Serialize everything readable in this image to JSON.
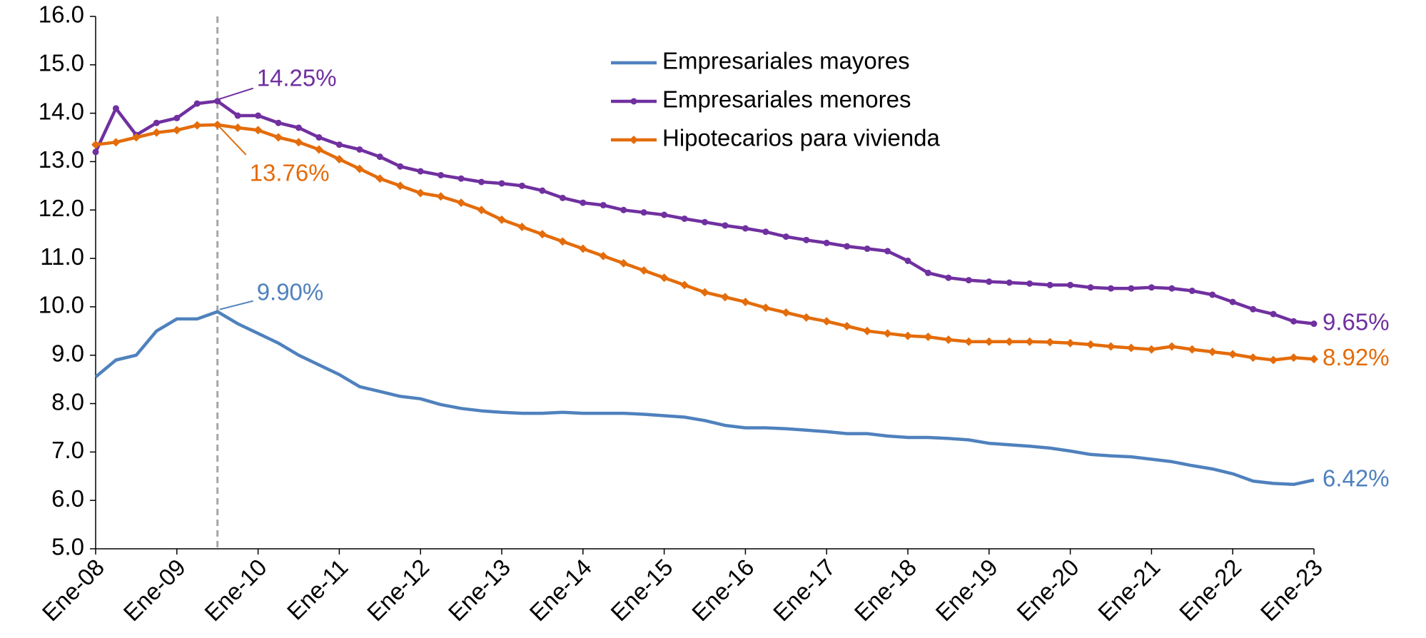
{
  "chart_data": {
    "type": "line",
    "categories": [
      "Ene-08",
      null,
      null,
      null,
      "Ene-09",
      null,
      null,
      null,
      "Ene-10",
      null,
      null,
      null,
      "Ene-11",
      null,
      null,
      null,
      "Ene-12",
      null,
      null,
      null,
      "Ene-13",
      null,
      null,
      null,
      "Ene-14",
      null,
      null,
      null,
      "Ene-15",
      null,
      null,
      null,
      "Ene-16",
      null,
      null,
      null,
      "Ene-17",
      null,
      null,
      null,
      "Ene-18",
      null,
      null,
      null,
      "Ene-19",
      null,
      null,
      null,
      "Ene-20",
      null,
      null,
      null,
      "Ene-21",
      null,
      null,
      null,
      "Ene-22",
      null,
      null,
      null,
      "Ene-23"
    ],
    "ylim": [
      5,
      16
    ],
    "yticks": [
      {
        "value": 5,
        "label": "5.0"
      },
      {
        "value": 6,
        "label": "6.0"
      },
      {
        "value": 7,
        "label": "7.0"
      },
      {
        "value": 8,
        "label": "8.0"
      },
      {
        "value": 9,
        "label": "9.0"
      },
      {
        "value": 10,
        "label": "10.0"
      },
      {
        "value": 11,
        "label": "11.0"
      },
      {
        "value": 12,
        "label": "12.0"
      },
      {
        "value": 13,
        "label": "13.0"
      },
      {
        "value": 14,
        "label": "14.0"
      },
      {
        "value": 15,
        "label": "15.0"
      },
      {
        "value": 16,
        "label": "16.0"
      }
    ],
    "legend": "top",
    "series": [
      {
        "name": "Empresariales mayores",
        "color": "#4f81bd",
        "marker": "none",
        "values": [
          8.55,
          8.9,
          9.0,
          9.5,
          9.75,
          9.75,
          9.9,
          9.65,
          9.45,
          9.25,
          9.0,
          8.8,
          8.6,
          8.35,
          8.25,
          8.15,
          8.1,
          7.98,
          7.9,
          7.85,
          7.82,
          7.8,
          7.8,
          7.82,
          7.8,
          7.8,
          7.8,
          7.78,
          7.75,
          7.72,
          7.65,
          7.55,
          7.5,
          7.5,
          7.48,
          7.45,
          7.42,
          7.38,
          7.38,
          7.33,
          7.3,
          7.3,
          7.28,
          7.25,
          7.18,
          7.15,
          7.12,
          7.08,
          7.02,
          6.95,
          6.92,
          6.9,
          6.85,
          6.8,
          6.72,
          6.65,
          6.55,
          6.4,
          6.35,
          6.33,
          6.42
        ],
        "value_labels": [
          null,
          null,
          null,
          null,
          null,
          null,
          "9.90%",
          null,
          null,
          null,
          null,
          null,
          null,
          null,
          null,
          null,
          null,
          null,
          null,
          null,
          null,
          null,
          null,
          null,
          null,
          null,
          null,
          null,
          null,
          null,
          null,
          null,
          null,
          null,
          null,
          null,
          null,
          null,
          null,
          null,
          null,
          null,
          null,
          null,
          null,
          null,
          null,
          null,
          null,
          null,
          null,
          null,
          null,
          null,
          null,
          null,
          null,
          null,
          null,
          null,
          "6.42%"
        ]
      },
      {
        "name": "Empresariales menores",
        "color": "#7030a0",
        "marker": "circle",
        "values": [
          13.2,
          14.1,
          13.55,
          13.8,
          13.9,
          14.2,
          14.25,
          13.95,
          13.95,
          13.8,
          13.7,
          13.5,
          13.35,
          13.25,
          13.1,
          12.9,
          12.8,
          12.72,
          12.65,
          12.58,
          12.55,
          12.5,
          12.4,
          12.25,
          12.15,
          12.1,
          12.0,
          11.95,
          11.9,
          11.82,
          11.75,
          11.68,
          11.62,
          11.55,
          11.45,
          11.38,
          11.32,
          11.25,
          11.2,
          11.15,
          10.95,
          10.7,
          10.6,
          10.55,
          10.52,
          10.5,
          10.48,
          10.45,
          10.45,
          10.4,
          10.38,
          10.38,
          10.4,
          10.38,
          10.33,
          10.25,
          10.1,
          9.95,
          9.85,
          9.7,
          9.65
        ],
        "value_labels": [
          null,
          null,
          null,
          null,
          null,
          null,
          "14.25%",
          null,
          null,
          null,
          null,
          null,
          null,
          null,
          null,
          null,
          null,
          null,
          null,
          null,
          null,
          null,
          null,
          null,
          null,
          null,
          null,
          null,
          null,
          null,
          null,
          null,
          null,
          null,
          null,
          null,
          null,
          null,
          null,
          null,
          null,
          null,
          null,
          null,
          null,
          null,
          null,
          null,
          null,
          null,
          null,
          null,
          null,
          null,
          null,
          null,
          null,
          null,
          null,
          null,
          "9.65%"
        ]
      },
      {
        "name": "Hipotecarios para vivienda",
        "color": "#e46c0a",
        "marker": "diamond",
        "values": [
          13.35,
          13.4,
          13.5,
          13.6,
          13.65,
          13.75,
          13.76,
          13.7,
          13.65,
          13.5,
          13.4,
          13.25,
          13.05,
          12.85,
          12.65,
          12.5,
          12.35,
          12.28,
          12.15,
          12.0,
          11.8,
          11.65,
          11.5,
          11.35,
          11.2,
          11.05,
          10.9,
          10.75,
          10.6,
          10.45,
          10.3,
          10.2,
          10.1,
          9.98,
          9.88,
          9.78,
          9.7,
          9.6,
          9.5,
          9.45,
          9.4,
          9.38,
          9.32,
          9.28,
          9.28,
          9.28,
          9.28,
          9.27,
          9.25,
          9.22,
          9.18,
          9.15,
          9.12,
          9.18,
          9.12,
          9.07,
          9.02,
          8.95,
          8.9,
          8.95,
          8.92
        ],
        "value_labels": [
          null,
          null,
          null,
          null,
          null,
          null,
          "13.76%",
          null,
          null,
          null,
          null,
          null,
          null,
          null,
          null,
          null,
          null,
          null,
          null,
          null,
          null,
          null,
          null,
          null,
          null,
          null,
          null,
          null,
          null,
          null,
          null,
          null,
          null,
          null,
          null,
          null,
          null,
          null,
          null,
          null,
          null,
          null,
          null,
          null,
          null,
          null,
          null,
          null,
          null,
          null,
          null,
          null,
          null,
          null,
          null,
          null,
          null,
          null,
          null,
          null,
          "8.92%"
        ]
      }
    ]
  }
}
